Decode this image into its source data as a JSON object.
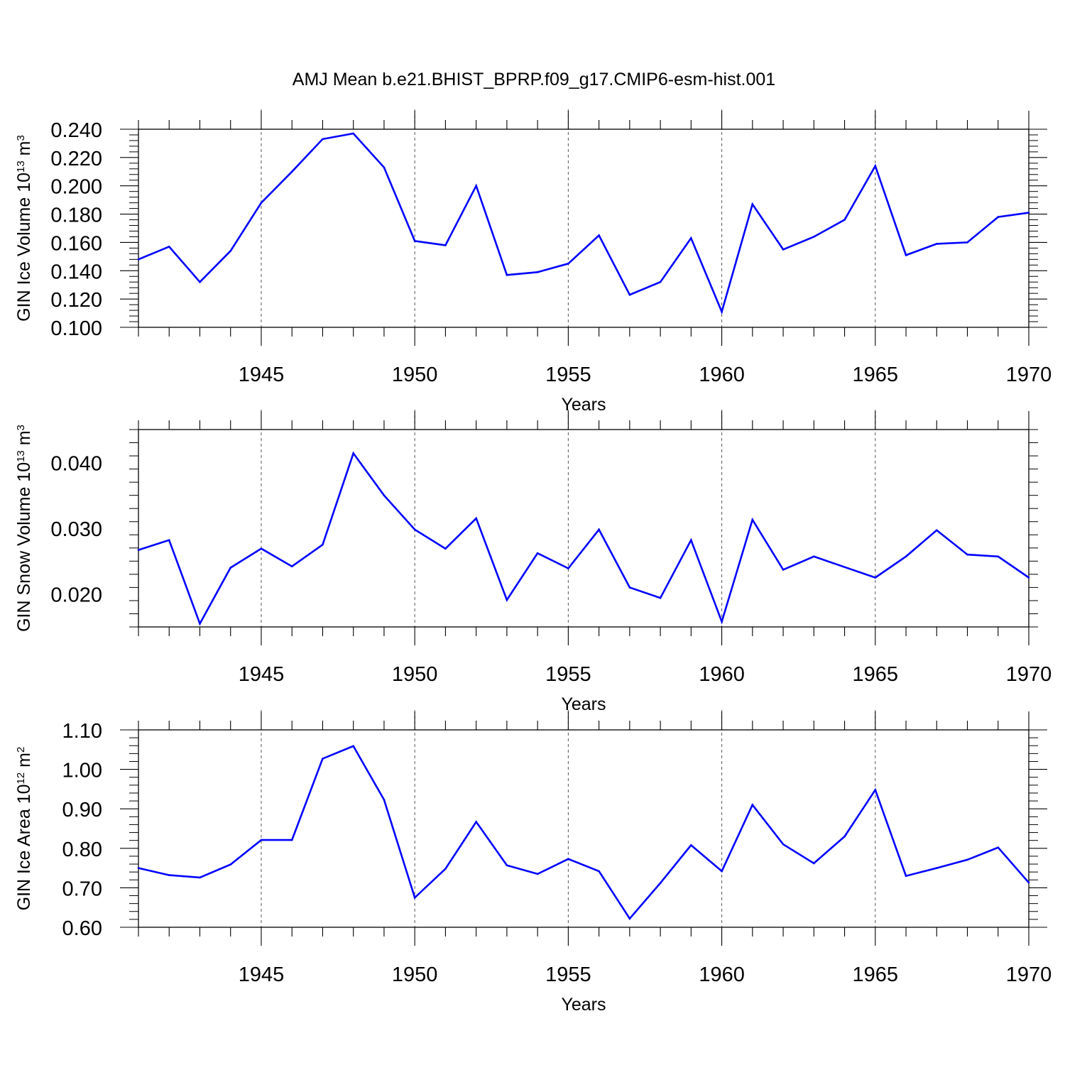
{
  "title": "AMJ Mean b.e21.BHIST_BPRP.f09_g17.CMIP6-esm-hist.001",
  "colors": {
    "series": "#0000ff",
    "axis": "#000000",
    "grid": "#555555"
  },
  "chart_data": [
    {
      "type": "line",
      "ylabel": "GIN Ice Volume 10",
      "ylabel_exp": "13",
      "ylabel_unit": " m",
      "ylabel_unit_exp": "3",
      "xlabel": "Years",
      "xlim": [
        1941,
        1970
      ],
      "ylim": [
        0.1,
        0.24
      ],
      "xticks": [
        1945,
        1950,
        1955,
        1960,
        1965,
        1970
      ],
      "xtick_labels": [
        "1945",
        "1950",
        "1955",
        "1960",
        "1965",
        "1970"
      ],
      "yticks": [
        0.1,
        0.12,
        0.14,
        0.16,
        0.18,
        0.2,
        0.22,
        0.24
      ],
      "ytick_labels": [
        "0.100",
        "0.120",
        "0.140",
        "0.160",
        "0.180",
        "0.200",
        "0.220",
        "0.240"
      ],
      "vgrid": true,
      "x": [
        1941,
        1942,
        1943,
        1944,
        1945,
        1946,
        1947,
        1948,
        1949,
        1950,
        1951,
        1952,
        1953,
        1954,
        1955,
        1956,
        1957,
        1958,
        1959,
        1960,
        1961,
        1962,
        1963,
        1964,
        1965,
        1966,
        1967,
        1968,
        1969,
        1970
      ],
      "values": [
        0.148,
        0.157,
        0.132,
        0.154,
        0.188,
        0.21,
        0.233,
        0.237,
        0.213,
        0.161,
        0.158,
        0.2,
        0.137,
        0.139,
        0.145,
        0.165,
        0.123,
        0.132,
        0.163,
        0.111,
        0.187,
        0.155,
        0.164,
        0.176,
        0.214,
        0.151,
        0.159,
        0.16,
        0.178,
        0.181
      ]
    },
    {
      "type": "line",
      "ylabel": "GIN Snow Volume 10",
      "ylabel_exp": "13",
      "ylabel_unit": " m",
      "ylabel_unit_exp": "3",
      "xlabel": "Years",
      "xlim": [
        1941,
        1970
      ],
      "ylim": [
        0.015,
        0.045
      ],
      "xticks": [
        1945,
        1950,
        1955,
        1960,
        1965,
        1970
      ],
      "xtick_labels": [
        "1945",
        "1950",
        "1955",
        "1960",
        "1965",
        "1970"
      ],
      "yticks": [
        0.02,
        0.03,
        0.04
      ],
      "ytick_labels": [
        "0.020",
        "0.030",
        "0.040"
      ],
      "vgrid": true,
      "x": [
        1941,
        1942,
        1943,
        1944,
        1945,
        1946,
        1947,
        1948,
        1949,
        1950,
        1951,
        1952,
        1953,
        1954,
        1955,
        1956,
        1957,
        1958,
        1959,
        1960,
        1961,
        1962,
        1963,
        1964,
        1965,
        1966,
        1967,
        1968,
        1969,
        1970
      ],
      "values": [
        0.0267,
        0.0282,
        0.0155,
        0.024,
        0.0269,
        0.0242,
        0.0275,
        0.0414,
        0.035,
        0.0298,
        0.0269,
        0.0315,
        0.0191,
        0.0262,
        0.0239,
        0.0298,
        0.021,
        0.0194,
        0.0282,
        0.0158,
        0.0313,
        0.0237,
        0.0257,
        0.0241,
        0.0225,
        0.0257,
        0.0297,
        0.026,
        0.0257,
        0.0225
      ]
    },
    {
      "type": "line",
      "ylabel": "GIN Ice Area 10",
      "ylabel_exp": "12",
      "ylabel_unit": " m",
      "ylabel_unit_exp": "2",
      "xlabel": "Years",
      "xlim": [
        1941,
        1970
      ],
      "ylim": [
        0.6,
        1.1
      ],
      "xticks": [
        1945,
        1950,
        1955,
        1960,
        1965,
        1970
      ],
      "xtick_labels": [
        "1945",
        "1950",
        "1955",
        "1960",
        "1965",
        "1970"
      ],
      "yticks": [
        0.6,
        0.7,
        0.8,
        0.9,
        1.0,
        1.1
      ],
      "ytick_labels": [
        "0.60",
        "0.70",
        "0.80",
        "0.90",
        "1.00",
        "1.10"
      ],
      "vgrid": true,
      "x": [
        1941,
        1942,
        1943,
        1944,
        1945,
        1946,
        1947,
        1948,
        1949,
        1950,
        1951,
        1952,
        1953,
        1954,
        1955,
        1956,
        1957,
        1958,
        1959,
        1960,
        1961,
        1962,
        1963,
        1964,
        1965,
        1966,
        1967,
        1968,
        1969,
        1970
      ],
      "values": [
        0.75,
        0.732,
        0.726,
        0.759,
        0.821,
        0.821,
        1.027,
        1.059,
        0.923,
        0.675,
        0.748,
        0.867,
        0.757,
        0.735,
        0.773,
        0.742,
        0.622,
        0.712,
        0.808,
        0.742,
        0.91,
        0.81,
        0.762,
        0.83,
        0.948,
        0.73,
        0.75,
        0.771,
        0.802,
        0.713
      ]
    }
  ]
}
